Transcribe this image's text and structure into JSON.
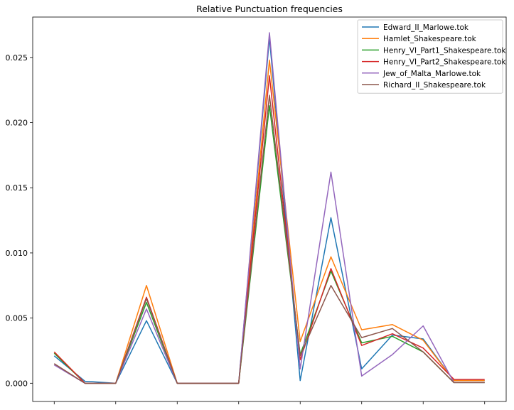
{
  "chart_data": {
    "type": "line",
    "title": "Relative Punctuation frequencies",
    "xlabel": "",
    "ylabel": "",
    "x": [
      0,
      1,
      2,
      3,
      4,
      5,
      6,
      7,
      8,
      9,
      10,
      11,
      12,
      13,
      14
    ],
    "x_tick_positions": [
      0,
      2,
      4,
      6,
      8,
      10,
      12,
      14
    ],
    "x_tick_labels": [
      "",
      "",
      "",
      "",
      "",
      "",
      "",
      ""
    ],
    "ylim": [
      -0.0014,
      0.0281
    ],
    "yticks": [
      0.0,
      0.005,
      0.01,
      0.015,
      0.02,
      0.025
    ],
    "ytick_labels": [
      "0.000",
      "0.005",
      "0.010",
      "0.015",
      "0.020",
      "0.025"
    ],
    "grid": false,
    "legend_position": "top-right",
    "series": [
      {
        "name": "Edward_II_Marlowe.tok",
        "color": "#1f77b4",
        "values": [
          0.0021,
          0.00015,
          0.0,
          0.0048,
          0.0,
          0.0,
          0.0,
          0.0265,
          0.0002,
          0.0127,
          0.0011,
          0.0037,
          0.0034,
          0.0002,
          0.0002
        ]
      },
      {
        "name": "Hamlet_Shakespeare.tok",
        "color": "#ff7f0e",
        "values": [
          0.0024,
          0.0,
          0.0,
          0.0075,
          0.0,
          0.0,
          0.0,
          0.0248,
          0.0032,
          0.0097,
          0.0041,
          0.0045,
          0.0033,
          0.0002,
          0.0002
        ]
      },
      {
        "name": "Henry_VI_Part1_Shakespeare.tok",
        "color": "#2ca02c",
        "values": [
          0.0023,
          0.0,
          0.0,
          0.0062,
          0.0,
          0.0,
          0.0,
          0.0213,
          0.0022,
          0.0086,
          0.0031,
          0.0036,
          0.0024,
          5e-05,
          5e-05
        ]
      },
      {
        "name": "Henry_VI_Part2_Shakespeare.tok",
        "color": "#d62728",
        "values": [
          0.0024,
          0.0,
          0.0,
          0.0066,
          0.0,
          0.0,
          0.0,
          0.0236,
          0.0018,
          0.0088,
          0.0029,
          0.0038,
          0.0027,
          0.0003,
          0.0003
        ]
      },
      {
        "name": "Jew_of_Malta_Marlowe.tok",
        "color": "#9467bd",
        "values": [
          0.0014,
          0.0,
          0.0,
          0.0057,
          0.0,
          0.0,
          0.0,
          0.0269,
          0.0011,
          0.0162,
          0.00055,
          0.0022,
          0.0044,
          5e-05,
          5e-05
        ]
      },
      {
        "name": "Richard_II_Shakespeare.tok",
        "color": "#8c564b",
        "values": [
          0.0015,
          0.0,
          0.0,
          0.0065,
          0.0,
          0.0,
          0.0,
          0.0221,
          0.0021,
          0.0075,
          0.0035,
          0.0042,
          0.0024,
          5e-05,
          5e-05
        ]
      }
    ]
  }
}
